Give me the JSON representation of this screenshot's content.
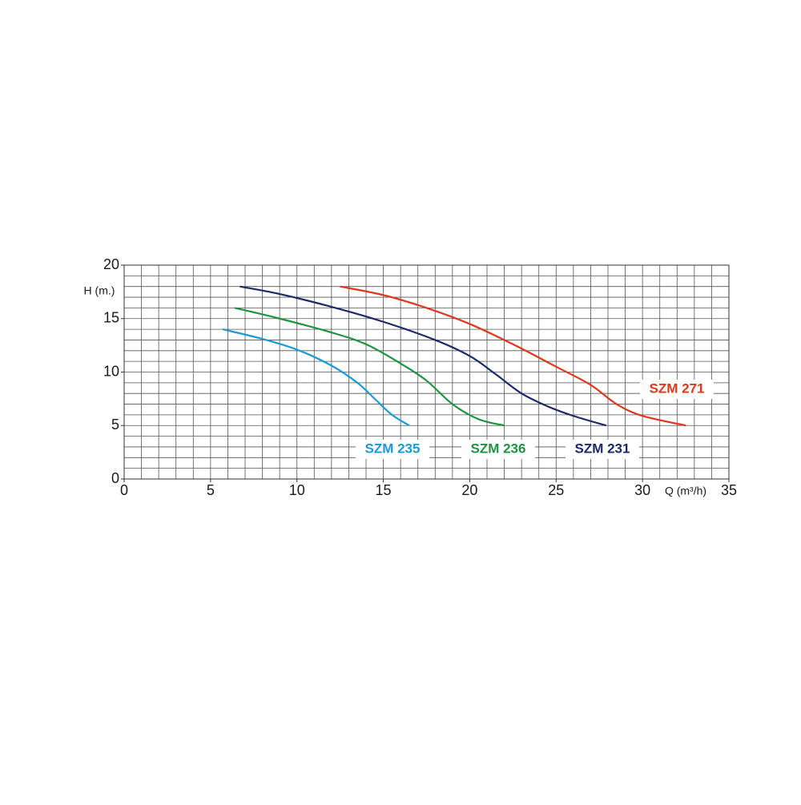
{
  "chart_data": {
    "type": "line",
    "ylabel": "H (m.)",
    "xlabel": "Q (m³/h)",
    "xlim": [
      0,
      35
    ],
    "ylim": [
      0,
      20
    ],
    "xticks": [
      0,
      5,
      10,
      15,
      20,
      25,
      30,
      35
    ],
    "yticks": [
      0,
      5,
      10,
      15,
      20
    ],
    "grid": true,
    "xgrid_step": 1,
    "ygrid_step": 1,
    "series": [
      {
        "name": "SZM 235",
        "color": "#1b9ad8",
        "x": [
          5.7,
          8,
          10,
          12,
          13.5,
          14.5,
          15.5,
          16.5
        ],
        "values": [
          14,
          13.1,
          12.1,
          10.6,
          9,
          7.5,
          6,
          5
        ]
      },
      {
        "name": "SZM 236",
        "color": "#1e9440",
        "x": [
          6.4,
          9,
          12,
          14,
          16,
          17.5,
          19,
          20.5,
          22
        ],
        "values": [
          16,
          15,
          13.7,
          12.6,
          10.8,
          9.2,
          7,
          5.6,
          5
        ]
      },
      {
        "name": "SZM 231",
        "color": "#1b2a6b",
        "x": [
          6.7,
          9,
          12,
          15,
          18,
          20,
          21.5,
          23,
          24.5,
          26,
          27.9
        ],
        "values": [
          18,
          17.3,
          16.1,
          14.7,
          13,
          11.5,
          9.8,
          8,
          6.8,
          5.9,
          5
        ]
      },
      {
        "name": "SZM 271",
        "color": "#e0381c",
        "x": [
          12.5,
          15,
          17.5,
          20,
          22.5,
          25,
          27,
          28.5,
          30,
          32.5
        ],
        "values": [
          18,
          17.2,
          16,
          14.5,
          12.6,
          10.5,
          8.8,
          7,
          5.9,
          5
        ]
      }
    ]
  }
}
